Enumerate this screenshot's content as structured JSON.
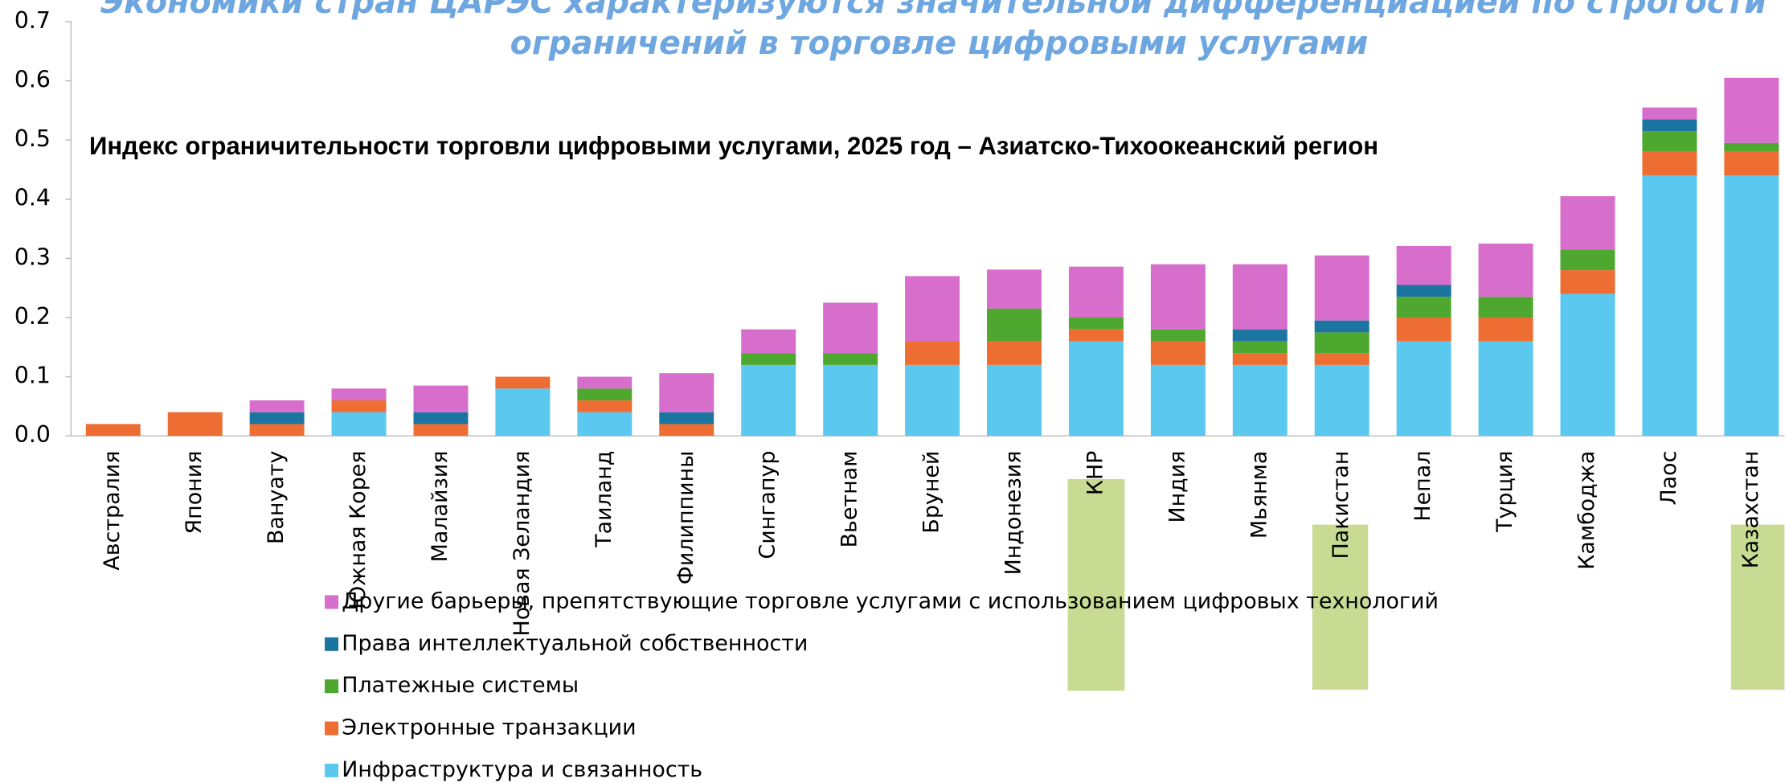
{
  "chart_data": {
    "type": "stacked_bar",
    "title": "Экономики стран ЦАРЭС характеризуются значительной дифференциацией по строгости",
    "title_line2": "ограничений в торговле цифровыми услугами",
    "subtitle": "Индекс ограничительности торговли цифровыми услугами, 2025 год – Азиатско-Тихоокеанский регион",
    "categories": [
      "Австралия",
      "Япония",
      "Вануату",
      "Южная Корея",
      "Малайзия",
      "Новая Зеландия",
      "Таиланд",
      "Филиппины",
      "Сингапур",
      "Вьетнам",
      "Бруней",
      "Индонезия",
      "КНР",
      "Индия",
      "Мьянма",
      "Пакистан",
      "Непал",
      "Турция",
      "Камбоджа",
      "Лаос",
      "Казахстан"
    ],
    "series": [
      {
        "name": "Инфраструктура и связанность",
        "color": "#5BC8F0",
        "values": [
          0,
          0,
          0,
          0.04,
          0,
          0.08,
          0.04,
          0,
          0.12,
          0.12,
          0.12,
          0.12,
          0.16,
          0.12,
          0.12,
          0.12,
          0.16,
          0.16,
          0.24,
          0.44,
          0.44
        ]
      },
      {
        "name": "Электронные транзакции",
        "color": "#ED6D32",
        "values": [
          0.02,
          0.04,
          0.02,
          0.02,
          0.02,
          0.02,
          0.02,
          0.02,
          0,
          0,
          0.04,
          0.04,
          0.02,
          0.04,
          0.02,
          0.02,
          0.04,
          0.04,
          0.04,
          0.04,
          0.04
        ]
      },
      {
        "name": "Платежные системы",
        "color": "#4EA72E",
        "values": [
          0,
          0,
          0,
          0,
          0,
          0,
          0.02,
          0,
          0.02,
          0.02,
          0,
          0.055,
          0.02,
          0.02,
          0.02,
          0.035,
          0.035,
          0.035,
          0.035,
          0.035,
          0.015
        ]
      },
      {
        "name": "Права интеллектуальной собственности",
        "color": "#1B75A0",
        "values": [
          0,
          0,
          0.02,
          0,
          0.02,
          0,
          0,
          0.02,
          0,
          0,
          0,
          0,
          0,
          0,
          0.02,
          0.02,
          0.02,
          0,
          0,
          0.02,
          0
        ]
      },
      {
        "name": "Другие барьеры, препятствующие торговле услугами с использованием цифровых технологий",
        "color": "#D86ECC",
        "values": [
          0,
          0,
          0.02,
          0.02,
          0.045,
          0,
          0.02,
          0.066,
          0.04,
          0.085,
          0.11,
          0.066,
          0.086,
          0.11,
          0.11,
          0.11,
          0.066,
          0.09,
          0.09,
          0.02,
          0.11
        ]
      }
    ],
    "ylim": [
      0,
      0.7
    ],
    "yticks": [
      {
        "value": 0,
        "label": "0.0"
      },
      0.1,
      0.2,
      0.3,
      0.4,
      0.5,
      0.6,
      0.7
    ],
    "grid": false
  }
}
